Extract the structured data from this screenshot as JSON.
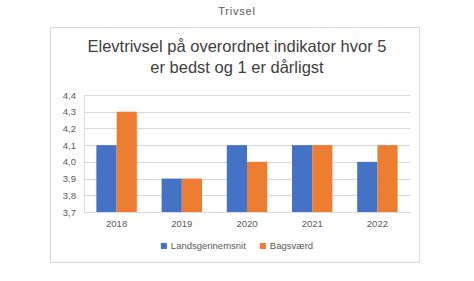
{
  "page": {
    "heading": "Trivsel"
  },
  "chart_data": {
    "type": "bar",
    "title": [
      "Elevtrivsel på overordnet indikator hvor 5",
      "er bedst og 1 er dårligst"
    ],
    "categories": [
      "2018",
      "2019",
      "2020",
      "2021",
      "2022"
    ],
    "series": [
      {
        "name": "Landsgennemsnit",
        "color": "#4472c4",
        "values": [
          4.1,
          3.9,
          4.1,
          4.1,
          4.0
        ]
      },
      {
        "name": "Bagsværd",
        "color": "#ed7d31",
        "values": [
          4.3,
          3.9,
          4.0,
          4.1,
          4.1
        ]
      }
    ],
    "ylim": [
      3.7,
      4.4
    ],
    "yticks": [
      {
        "value": 3.7,
        "label": "3,7"
      },
      {
        "value": 3.8,
        "label": "3,8"
      },
      {
        "value": 3.9,
        "label": "3,9"
      },
      {
        "value": 4.0,
        "label": "4,0"
      },
      {
        "value": 4.1,
        "label": "4,1"
      },
      {
        "value": 4.2,
        "label": "4,2"
      },
      {
        "value": 4.3,
        "label": "4,3"
      },
      {
        "value": 4.4,
        "label": "4,4"
      }
    ],
    "grid": true,
    "legend": "bottom"
  }
}
